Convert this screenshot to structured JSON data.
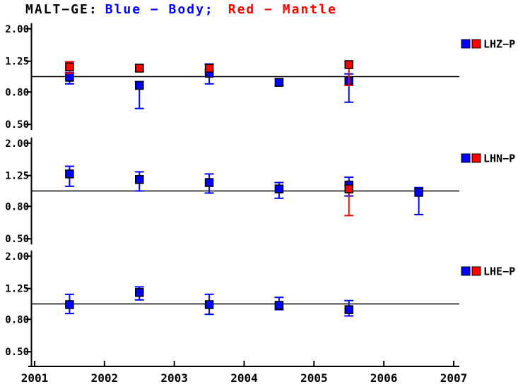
{
  "title": {
    "prefix": "MALT−GE:",
    "blue_label": "Blue − Body;",
    "red_label": "Red − Mantle"
  },
  "colors": {
    "body": "#0000ff",
    "mantle": "#ff0000",
    "axis": "#000000",
    "background": "#ffffff"
  },
  "chart_data": {
    "type": "scatter",
    "title": "MALT−GE: Blue − Body; Red − Mantle",
    "x": {
      "min": 2001,
      "max": 2007,
      "ticks": [
        2001,
        2002,
        2003,
        2004,
        2005,
        2006,
        2007
      ]
    },
    "y": {
      "scale": "log",
      "min": 0.5,
      "max": 2.0,
      "ticks": [
        2.0,
        1.25,
        0.8,
        0.5
      ],
      "tick_labels": [
        "2.00",
        "1.25",
        "0.80",
        "0.50"
      ],
      "reference": 1.0
    },
    "legend_position": "right",
    "panels": [
      {
        "id": "LHZ-P",
        "legend_label": "LHZ−P",
        "series": [
          {
            "name": "Body",
            "color": "#0000ff",
            "points": [
              {
                "x": 2001.5,
                "y": 0.99,
                "lo": 0.9,
                "hi": 1.06
              },
              {
                "x": 2002.5,
                "y": 0.88,
                "lo": 0.63,
                "hi": 0.93
              },
              {
                "x": 2003.5,
                "y": 1.05,
                "lo": 0.9,
                "hi": 1.2
              },
              {
                "x": 2004.5,
                "y": 0.92,
                "lo": 0.88,
                "hi": 0.96
              },
              {
                "x": 2005.5,
                "y": 0.94,
                "lo": 0.69,
                "hi": 1.04
              }
            ]
          },
          {
            "name": "Mantle",
            "color": "#ff0000",
            "points": [
              {
                "x": 2001.5,
                "y": 1.15,
                "lo": 1.05,
                "hi": 1.24
              },
              {
                "x": 2002.5,
                "y": 1.13,
                "lo": 1.08,
                "hi": 1.18
              },
              {
                "x": 2003.5,
                "y": 1.13,
                "lo": 1.07,
                "hi": 1.19
              },
              {
                "x": 2005.5,
                "y": 1.19,
                "lo": 0.88,
                "hi": 1.24
              }
            ]
          }
        ]
      },
      {
        "id": "LHN-P",
        "legend_label": "LHN−P",
        "series": [
          {
            "name": "Body",
            "color": "#0000ff",
            "points": [
              {
                "x": 2001.5,
                "y": 1.28,
                "lo": 1.07,
                "hi": 1.43
              },
              {
                "x": 2002.5,
                "y": 1.18,
                "lo": 1.0,
                "hi": 1.32
              },
              {
                "x": 2003.5,
                "y": 1.13,
                "lo": 0.97,
                "hi": 1.28
              },
              {
                "x": 2004.5,
                "y": 1.03,
                "lo": 0.9,
                "hi": 1.13
              },
              {
                "x": 2005.5,
                "y": 1.09,
                "lo": 0.93,
                "hi": 1.22
              },
              {
                "x": 2006.5,
                "y": 0.98,
                "lo": 0.71,
                "hi": 1.05
              }
            ]
          },
          {
            "name": "Mantle",
            "color": "#ff0000",
            "points": [
              {
                "x": 2005.5,
                "y": 1.03,
                "lo": 0.7,
                "hi": 1.08
              }
            ]
          }
        ]
      },
      {
        "id": "LHE-P",
        "legend_label": "LHE−P",
        "series": [
          {
            "name": "Body",
            "color": "#0000ff",
            "points": [
              {
                "x": 2001.5,
                "y": 0.99,
                "lo": 0.87,
                "hi": 1.15
              },
              {
                "x": 2002.5,
                "y": 1.18,
                "lo": 1.06,
                "hi": 1.28
              },
              {
                "x": 2003.5,
                "y": 0.99,
                "lo": 0.86,
                "hi": 1.15
              },
              {
                "x": 2004.5,
                "y": 0.98,
                "lo": 0.92,
                "hi": 1.1
              },
              {
                "x": 2005.5,
                "y": 0.92,
                "lo": 0.84,
                "hi": 1.05
              }
            ]
          }
        ]
      }
    ]
  }
}
